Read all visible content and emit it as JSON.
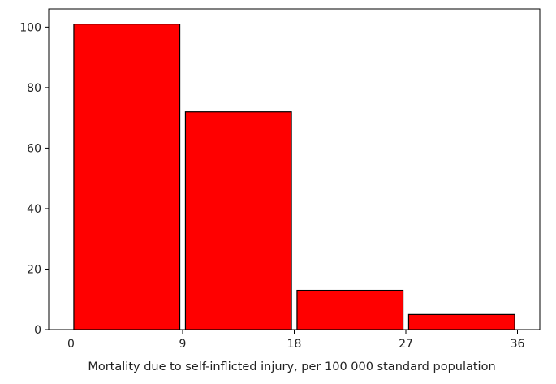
{
  "chart_data": {
    "type": "bar",
    "title": "",
    "xlabel": "Mortality due to self-inflicted injury, per 100 000 standard population",
    "ylabel": "",
    "bins": [
      {
        "start": 0,
        "end": 9,
        "value": 101
      },
      {
        "start": 9,
        "end": 18,
        "value": 72
      },
      {
        "start": 18,
        "end": 27,
        "value": 13
      },
      {
        "start": 27,
        "end": 36,
        "value": 5
      }
    ],
    "x_ticks": [
      0,
      9,
      18,
      27,
      36
    ],
    "y_ticks": [
      0,
      20,
      40,
      60,
      80,
      100
    ],
    "xlim": [
      -1.8,
      37.8
    ],
    "ylim": [
      0,
      106
    ],
    "grid": false,
    "colors": {
      "bar_fill": "#ff0000",
      "bar_edge": "#000000",
      "axis": "#000000",
      "text": "#222222"
    }
  }
}
